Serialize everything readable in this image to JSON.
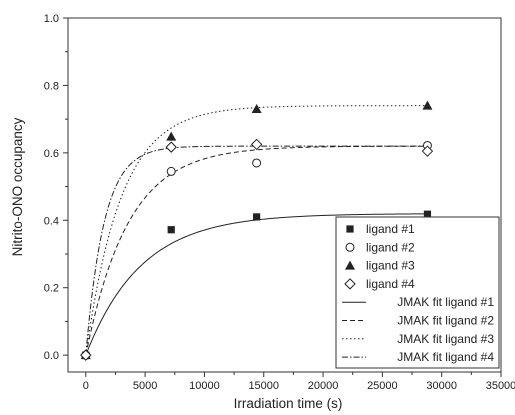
{
  "chart_data": {
    "type": "scatter",
    "xlabel": "Irradiation time (s)",
    "ylabel": "Nitrito-ONO occupancy",
    "xlim": [
      -1500,
      35000
    ],
    "ylim": [
      -0.05,
      1.0
    ],
    "xticks": [
      0,
      5000,
      10000,
      15000,
      20000,
      25000,
      30000,
      35000
    ],
    "yticks": [
      0.0,
      0.2,
      0.4,
      0.6,
      0.8,
      1.0
    ],
    "xtick_labels": [
      "0",
      "5000",
      "10000",
      "15000",
      "20000",
      "25000",
      "30000",
      "35000"
    ],
    "ytick_labels": [
      "0.0",
      "0.2",
      "0.4",
      "0.6",
      "0.8",
      "1.0"
    ],
    "grid": false,
    "legend_position": "bottom-right",
    "series": [
      {
        "name": "ligand #1",
        "marker": "filled-square",
        "x": [
          0,
          7200,
          14400,
          28800
        ],
        "y": [
          0.0,
          0.372,
          0.41,
          0.418
        ]
      },
      {
        "name": "ligand #2",
        "marker": "open-circle",
        "x": [
          0,
          7200,
          14400,
          28800
        ],
        "y": [
          0.0,
          0.545,
          0.57,
          0.622
        ]
      },
      {
        "name": "ligand #3",
        "marker": "filled-triangle",
        "x": [
          0,
          7200,
          14400,
          28800
        ],
        "y": [
          0.0,
          0.648,
          0.73,
          0.74
        ]
      },
      {
        "name": "ligand #4",
        "marker": "open-diamond",
        "x": [
          0,
          7200,
          14400,
          28800
        ],
        "y": [
          0.0,
          0.617,
          0.625,
          0.605
        ]
      }
    ],
    "fits": [
      {
        "name": "JMAK fit ligand #1",
        "dash": "solid",
        "a": 0.42,
        "k": 0.000215,
        "n": 1.0
      },
      {
        "name": "JMAK fit ligand #2",
        "dash": "dashed",
        "a": 0.62,
        "k": 0.00028,
        "n": 1.0
      },
      {
        "name": "JMAK fit ligand #3",
        "dash": "dotted",
        "a": 0.74,
        "k": 0.000335,
        "n": 1.0
      },
      {
        "name": "JMAK fit ligand #4",
        "dash": "dashdot",
        "a": 0.62,
        "k": 0.00065,
        "n": 1.0
      }
    ]
  },
  "colors": {
    "axis": "#333333",
    "marker": "#222222",
    "text": "#222222"
  }
}
